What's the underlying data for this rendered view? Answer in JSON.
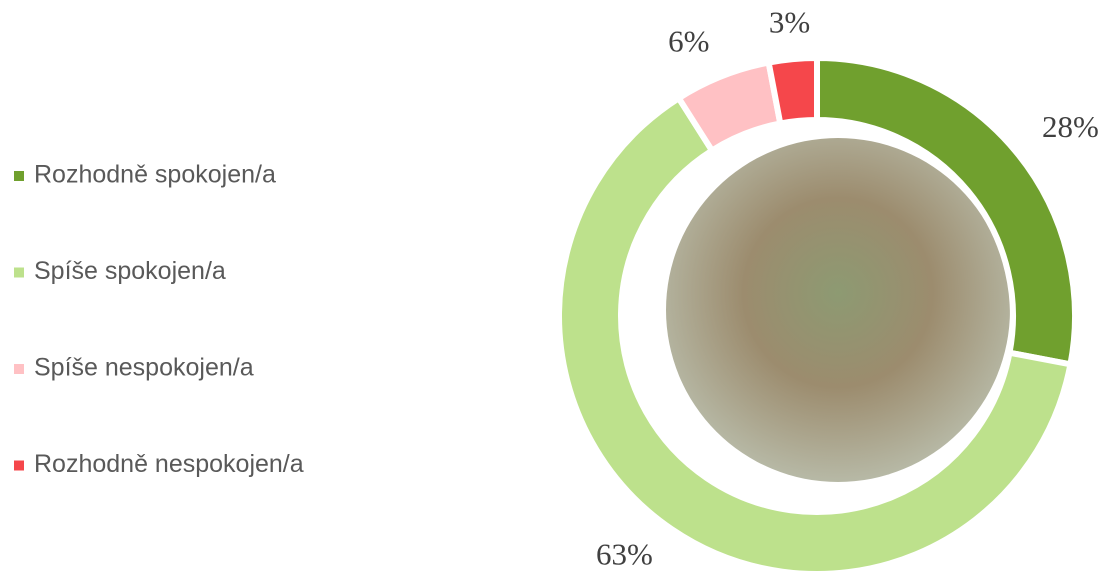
{
  "chart_data": {
    "type": "donut",
    "categories": [
      "Rozhodně spokojen/a",
      "Spíše spokojen/a",
      "Spíše nespokojen/a",
      "Rozhodně nespokojen/a"
    ],
    "values": [
      28,
      63,
      6,
      3
    ],
    "value_labels": [
      "28%",
      "63%",
      "6%",
      "3%"
    ],
    "colors": [
      "#70a02e",
      "#bde18c",
      "#ffc1c4",
      "#f5474b"
    ],
    "legend": "left"
  }
}
